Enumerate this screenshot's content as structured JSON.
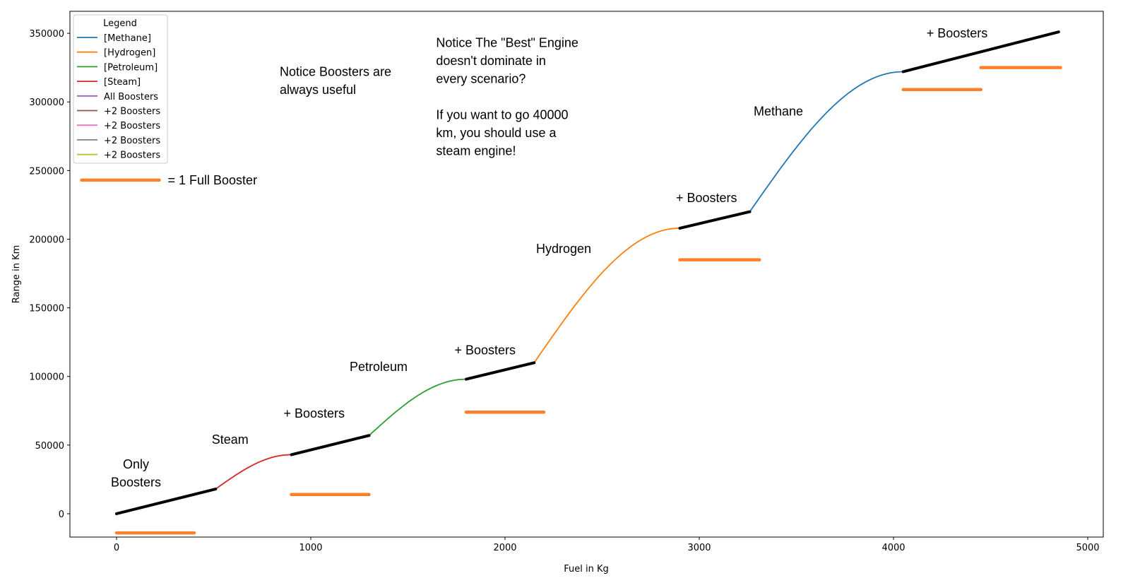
{
  "chart_data": {
    "type": "line",
    "xlabel": "Fuel in Kg",
    "ylabel": "Range in Km",
    "xlim": [
      -240,
      5080
    ],
    "ylim": [
      -17000,
      366000
    ],
    "xticks": [
      0,
      1000,
      2000,
      3000,
      4000,
      5000
    ],
    "yticks": [
      0,
      50000,
      100000,
      150000,
      200000,
      250000,
      300000,
      350000
    ],
    "grid": false,
    "legend": {
      "title": "Legend",
      "placement": "top-left",
      "entries": [
        {
          "label": "[Methane]",
          "color": "#1f77b4"
        },
        {
          "label": "[Hydrogen]",
          "color": "#ff7f0e"
        },
        {
          "label": "[Petroleum]",
          "color": "#2ca02c"
        },
        {
          "label": "[Steam]",
          "color": "#d62728"
        },
        {
          "label": "All Boosters",
          "color": "#9467bd"
        },
        {
          "label": "+2 Boosters",
          "color": "#8c564b"
        },
        {
          "label": "+2 Boosters",
          "color": "#e377c2"
        },
        {
          "label": "+2 Boosters",
          "color": "#7f7f7f"
        },
        {
          "label": "+2 Boosters",
          "color": "#bcbd22"
        }
      ]
    },
    "engine_curves": [
      {
        "name": "[Steam]",
        "color": "#d62728",
        "x": [
          510,
          900
        ],
        "y": [
          18000,
          43000
        ]
      },
      {
        "name": "[Petroleum]",
        "color": "#2ca02c",
        "x": [
          1300,
          1800
        ],
        "y": [
          57000,
          98000
        ]
      },
      {
        "name": "[Hydrogen]",
        "color": "#ff7f0e",
        "x": [
          2150,
          2900
        ],
        "y": [
          110000,
          208000
        ]
      },
      {
        "name": "[Methane]",
        "color": "#1f77b4",
        "x": [
          3260,
          4050
        ],
        "y": [
          220000,
          322000
        ]
      }
    ],
    "booster_segments": [
      {
        "x": [
          0,
          510
        ],
        "y": [
          0,
          18000
        ]
      },
      {
        "x": [
          900,
          1300
        ],
        "y": [
          43000,
          57000
        ]
      },
      {
        "x": [
          1800,
          2150
        ],
        "y": [
          98000,
          110000
        ]
      },
      {
        "x": [
          2900,
          3260
        ],
        "y": [
          208000,
          220000
        ]
      },
      {
        "x": [
          4050,
          4850
        ],
        "y": [
          322000,
          351000
        ]
      }
    ],
    "booster_bars": [
      {
        "x": [
          0,
          400
        ],
        "y": -14000
      },
      {
        "x": [
          900,
          1300
        ],
        "y": 14000
      },
      {
        "x": [
          1800,
          2200
        ],
        "y": 74000
      },
      {
        "x": [
          2900,
          3310
        ],
        "y": 185000
      },
      {
        "x": [
          4050,
          4450
        ],
        "y": 309000
      },
      {
        "x": [
          4450,
          4860
        ],
        "y": 325000
      }
    ],
    "booster_bar_color": "#ff7f2a",
    "booster_line_color": "#000000",
    "key_bar": {
      "x": [
        -180,
        220
      ],
      "y": 243000,
      "label": "= 1 Full Booster"
    },
    "annotations": [
      {
        "lines": [
          "Only",
          "Boosters"
        ],
        "x": 100,
        "y": 33000,
        "align": "middle"
      },
      {
        "lines": [
          "Steam"
        ],
        "x": 490,
        "y": 51000
      },
      {
        "lines": [
          "+ Boosters"
        ],
        "x": 860,
        "y": 70000
      },
      {
        "lines": [
          "Petroleum"
        ],
        "x": 1200,
        "y": 104000
      },
      {
        "lines": [
          "+ Boosters"
        ],
        "x": 1740,
        "y": 116000
      },
      {
        "lines": [
          "Hydrogen"
        ],
        "x": 2160,
        "y": 190000
      },
      {
        "lines": [
          "+ Boosters"
        ],
        "x": 2880,
        "y": 227000
      },
      {
        "lines": [
          "Methane"
        ],
        "x": 3280,
        "y": 290000
      },
      {
        "lines": [
          "+ Boosters"
        ],
        "x": 4170,
        "y": 347000
      },
      {
        "lines": [
          "Notice Boosters are",
          "always useful"
        ],
        "x": 840,
        "y": 319000
      },
      {
        "lines": [
          "Notice The \"Best\" Engine",
          "doesn't dominate in",
          "every scenario?",
          "",
          "If you want to go 40000",
          "km, you should use a",
          "steam engine!"
        ],
        "x": 1645,
        "y": 340000
      }
    ]
  }
}
